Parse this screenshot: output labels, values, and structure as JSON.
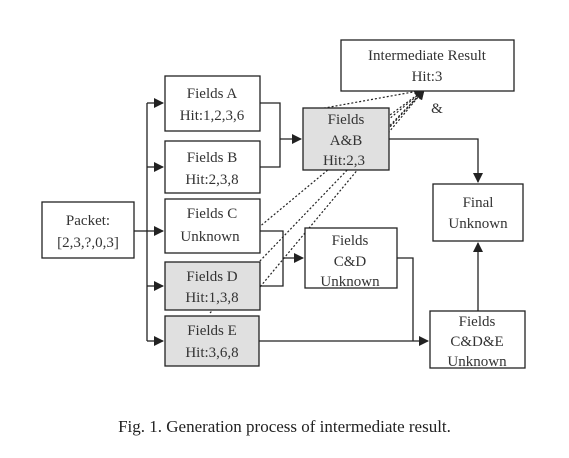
{
  "packet": {
    "line1": "Packet:",
    "line2": "[2,3,?,0,3]"
  },
  "fields_a": {
    "line1": "Fields A",
    "line2": "Hit:1,2,3,6"
  },
  "fields_b": {
    "line1": "Fields B",
    "line2": "Hit:2,3,8"
  },
  "fields_c": {
    "line1": "Fields C",
    "line2": "Unknown"
  },
  "fields_d": {
    "line1": "Fields D",
    "line2": "Hit:1,3,8"
  },
  "fields_e": {
    "line1": "Fields E",
    "line2": "Hit:3,6,8"
  },
  "fields_ab": {
    "line1": "Fields",
    "line2": "A&B",
    "line3": "Hit:2,3"
  },
  "fields_cd": {
    "line1": "Fields",
    "line2": "C&D",
    "line3": "Unknown"
  },
  "fields_cde": {
    "line1": "Fields",
    "line2": "C&D&E",
    "line3": "Unknown"
  },
  "final": {
    "line1": "Final",
    "line2": "Unknown"
  },
  "intermediate": {
    "line1": "Intermediate Result",
    "line2": "Hit:3"
  },
  "and_symbol": "&",
  "caption": "Fig. 1.   Generation process of intermediate result.",
  "colors": {
    "shaded_fill": "#e0e0e0",
    "line": "#222222"
  }
}
